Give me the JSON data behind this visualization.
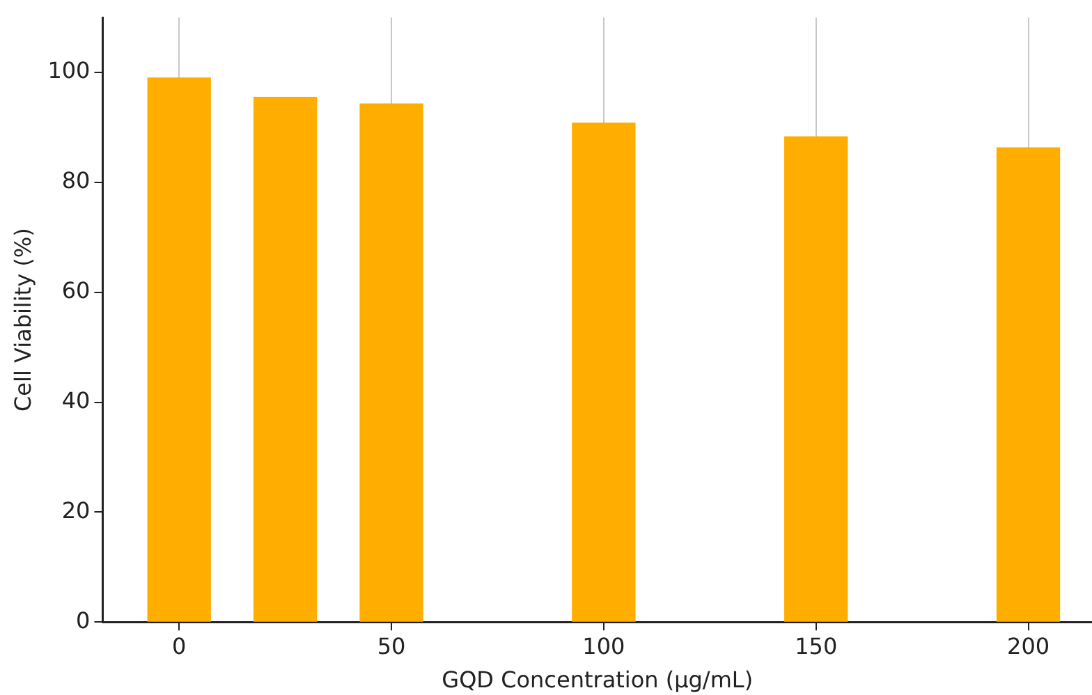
{
  "chart_data": {
    "type": "bar",
    "xlabel": "GQD Concentration (µg/mL)",
    "ylabel": "Cell Viability (%)",
    "x": [
      0,
      25,
      50,
      100,
      150,
      200
    ],
    "values": [
      99,
      95.5,
      94.3,
      90.8,
      88.3,
      86.3
    ],
    "color": "#ffae00",
    "xlim": [
      -18,
      215
    ],
    "xticks": [
      0,
      50,
      100,
      150,
      200
    ],
    "ylim": [
      0,
      110
    ],
    "yticks": [
      0,
      20,
      40,
      60,
      80,
      100
    ],
    "grid": "x",
    "legend": false
  }
}
